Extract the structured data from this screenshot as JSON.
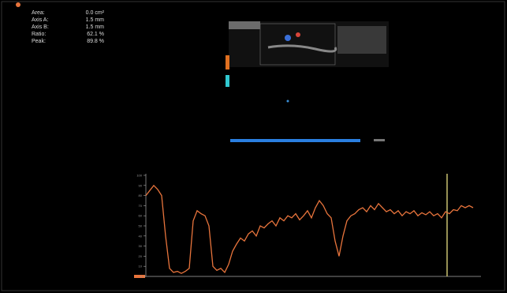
{
  "measurements": [
    {
      "label": "Area:",
      "value": "0.0 cm²"
    },
    {
      "label": "Axis A:",
      "value": "1.5 mm"
    },
    {
      "label": "Axis B:",
      "value": "1.5 mm"
    },
    {
      "label": "Ratio:",
      "value": "62.1 %"
    },
    {
      "label": "Peak:",
      "value": "89.8 %"
    }
  ],
  "chart_data": {
    "type": "line",
    "color": "#e8743c",
    "ylim": [
      0,
      100
    ],
    "yticks": [
      0,
      10,
      20,
      30,
      40,
      50,
      60,
      70,
      80,
      90,
      100
    ],
    "values": [
      80,
      85,
      90,
      86,
      80,
      40,
      8,
      4,
      5,
      3,
      5,
      8,
      55,
      65,
      62,
      60,
      50,
      10,
      6,
      8,
      4,
      12,
      25,
      32,
      38,
      35,
      42,
      45,
      40,
      50,
      48,
      52,
      55,
      50,
      58,
      55,
      60,
      58,
      62,
      56,
      60,
      65,
      58,
      68,
      75,
      70,
      62,
      58,
      35,
      20,
      40,
      55,
      60,
      62,
      66,
      68,
      64,
      70,
      66,
      72,
      68,
      64,
      66,
      62,
      65,
      60,
      64,
      62,
      65,
      60,
      63,
      61,
      64,
      60,
      62,
      58,
      64,
      62,
      66,
      65,
      70,
      68,
      70,
      68
    ]
  }
}
